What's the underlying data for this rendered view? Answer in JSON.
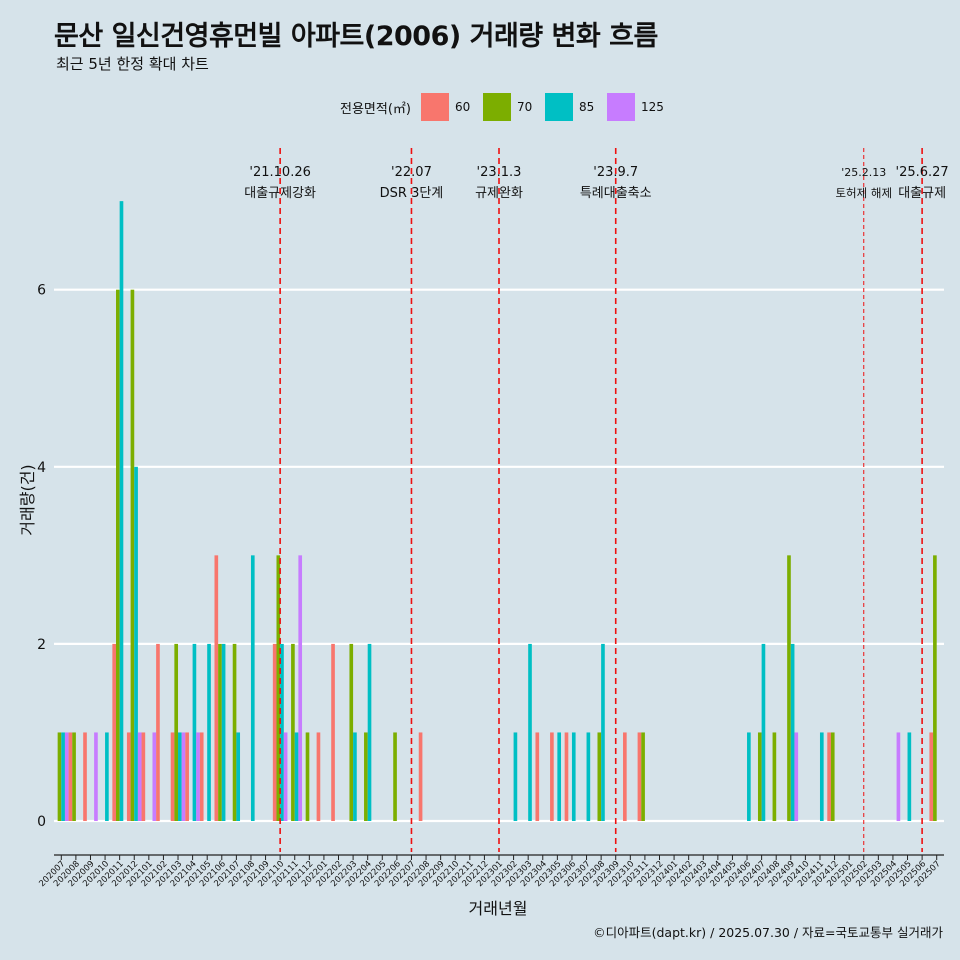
{
  "title": "문산 일신건영휴먼빌 아파트(2006) 거래량 변화 흐름",
  "subtitle": "최근 5년 한정 확대 차트",
  "caption": "©디아파트(dapt.kr) / 2025.07.30 / 자료=국토교통부 실거래가",
  "colors": {
    "60": "#f8766d",
    "70": "#7cae00",
    "85": "#00bfc4",
    "125": "#c77cff",
    "event_line": "#ee1111",
    "grid": "#ffffff",
    "background": "#d6e3ea"
  },
  "chart_data": {
    "type": "bar",
    "title": "문산 일신건영휴먼빌 아파트(2006) 거래량 변화 흐름",
    "subtitle": "최근 5년 한정 확대 차트",
    "xlabel": "거래년월",
    "ylabel": "거래량(건)",
    "ylim": [
      -0.35,
      7.6
    ],
    "yticks": [
      0,
      2,
      4,
      6
    ],
    "legend": {
      "title": "전용면적(㎡)",
      "position": "top",
      "entries": [
        "60",
        "70",
        "85",
        "125"
      ]
    },
    "categories": [
      "202007",
      "202008",
      "202009",
      "202010",
      "202011",
      "202012",
      "202101",
      "202102",
      "202103",
      "202104",
      "202105",
      "202106",
      "202107",
      "202108",
      "202109",
      "202110",
      "202111",
      "202112",
      "202201",
      "202202",
      "202203",
      "202204",
      "202205",
      "202206",
      "202207",
      "202208",
      "202209",
      "202210",
      "202211",
      "202212",
      "202301",
      "202302",
      "202303",
      "202304",
      "202305",
      "202306",
      "202307",
      "202308",
      "202309",
      "202310",
      "202311",
      "202312",
      "202401",
      "202402",
      "202403",
      "202404",
      "202405",
      "202406",
      "202407",
      "202408",
      "202409",
      "202410",
      "202411",
      "202412",
      "202501",
      "202502",
      "202503",
      "202504",
      "202505",
      "202506",
      "202507"
    ],
    "series": [
      {
        "name": "60",
        "values": [
          0,
          1,
          1,
          0,
          2,
          1,
          1,
          2,
          1,
          1,
          1,
          3,
          0,
          0,
          0,
          2,
          0,
          0,
          1,
          2,
          0,
          0,
          0,
          0,
          0,
          1,
          0,
          0,
          0,
          0,
          0,
          0,
          0,
          1,
          1,
          1,
          0,
          0,
          0,
          1,
          1,
          0,
          0,
          0,
          0,
          0,
          0,
          0,
          0,
          0,
          0,
          0,
          0,
          1,
          0,
          0,
          0,
          0,
          0,
          0,
          1
        ]
      },
      {
        "name": "70",
        "values": [
          1,
          1,
          0,
          0,
          6,
          6,
          0,
          0,
          2,
          0,
          0,
          2,
          2,
          0,
          0,
          3,
          2,
          1,
          0,
          0,
          2,
          1,
          0,
          1,
          0,
          0,
          0,
          0,
          0,
          0,
          0,
          0,
          0,
          0,
          0,
          0,
          0,
          1,
          0,
          0,
          1,
          0,
          0,
          0,
          0,
          0,
          0,
          0,
          1,
          1,
          3,
          0,
          0,
          1,
          0,
          0,
          0,
          0,
          0,
          0,
          3
        ]
      },
      {
        "name": "85",
        "values": [
          1,
          0,
          0,
          1,
          7,
          4,
          0,
          0,
          1,
          2,
          2,
          2,
          1,
          3,
          0,
          2,
          1,
          0,
          0,
          0,
          1,
          2,
          0,
          0,
          0,
          0,
          0,
          0,
          0,
          0,
          0,
          1,
          2,
          0,
          1,
          1,
          1,
          2,
          0,
          0,
          0,
          0,
          0,
          0,
          0,
          0,
          0,
          1,
          2,
          0,
          2,
          0,
          1,
          0,
          0,
          0,
          0,
          0,
          1,
          0,
          0
        ]
      },
      {
        "name": "125",
        "values": [
          1,
          0,
          1,
          0,
          0,
          1,
          1,
          0,
          1,
          1,
          0,
          0,
          0,
          0,
          0,
          1,
          3,
          0,
          0,
          0,
          0,
          0,
          0,
          0,
          0,
          0,
          0,
          0,
          0,
          0,
          0,
          0,
          0,
          0,
          0,
          0,
          0,
          0,
          0,
          0,
          0,
          0,
          0,
          0,
          0,
          0,
          0,
          0,
          0,
          0,
          1,
          0,
          0,
          0,
          0,
          0,
          0,
          1,
          0,
          0,
          0
        ]
      }
    ],
    "events": [
      {
        "month": "202110",
        "date": "'21.10.26",
        "label": "대출규제강화",
        "style": "dashed"
      },
      {
        "month": "202207",
        "date": "'22.07",
        "label": "DSR 3단계",
        "style": "dashed"
      },
      {
        "month": "202301",
        "date": "'23.1.3",
        "label": "규제완화",
        "style": "dashed"
      },
      {
        "month": "202309",
        "date": "'23.9.7",
        "label": "특례대출축소",
        "style": "dashed"
      },
      {
        "month": "202502",
        "date": "'25.2.13",
        "label": "토허제 해제",
        "style": "thin-dashed"
      },
      {
        "month": "202506",
        "date": "'25.6.27",
        "label": "대출규제",
        "style": "dashed"
      }
    ]
  }
}
